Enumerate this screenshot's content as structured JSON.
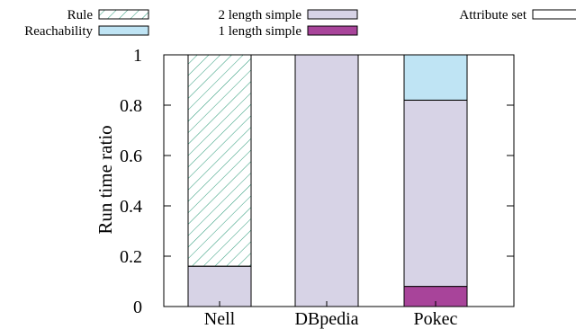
{
  "chart_data": {
    "type": "bar",
    "stacked": true,
    "title": "",
    "xlabel": "",
    "ylabel": "Run time ratio",
    "ylim": [
      0,
      1
    ],
    "yticks": [
      "0",
      "0.2",
      "0.4",
      "0.6",
      "0.8",
      "1"
    ],
    "categories": [
      "Nell",
      "DBpedia",
      "Pokec"
    ],
    "grid": false,
    "legend_position": "top",
    "series": [
      {
        "name": "1 length simple",
        "values": [
          0.0,
          0.0,
          0.08
        ],
        "color": "#a8449a",
        "pattern": "solid"
      },
      {
        "name": "2 length simple",
        "values": [
          0.16,
          1.0,
          0.74
        ],
        "color": "#d7d3e6",
        "pattern": "solid"
      },
      {
        "name": "Reachability",
        "values": [
          0.0,
          0.0,
          0.18
        ],
        "color": "#bfe4f4",
        "pattern": "solid"
      },
      {
        "name": "Attribute set",
        "values": [
          0.0,
          0.0,
          0.0
        ],
        "color": "#ffffff",
        "pattern": "solid"
      },
      {
        "name": "Rule",
        "values": [
          0.84,
          0.0,
          0.0
        ],
        "color": "#2a9a78",
        "pattern": "hatch"
      }
    ]
  }
}
